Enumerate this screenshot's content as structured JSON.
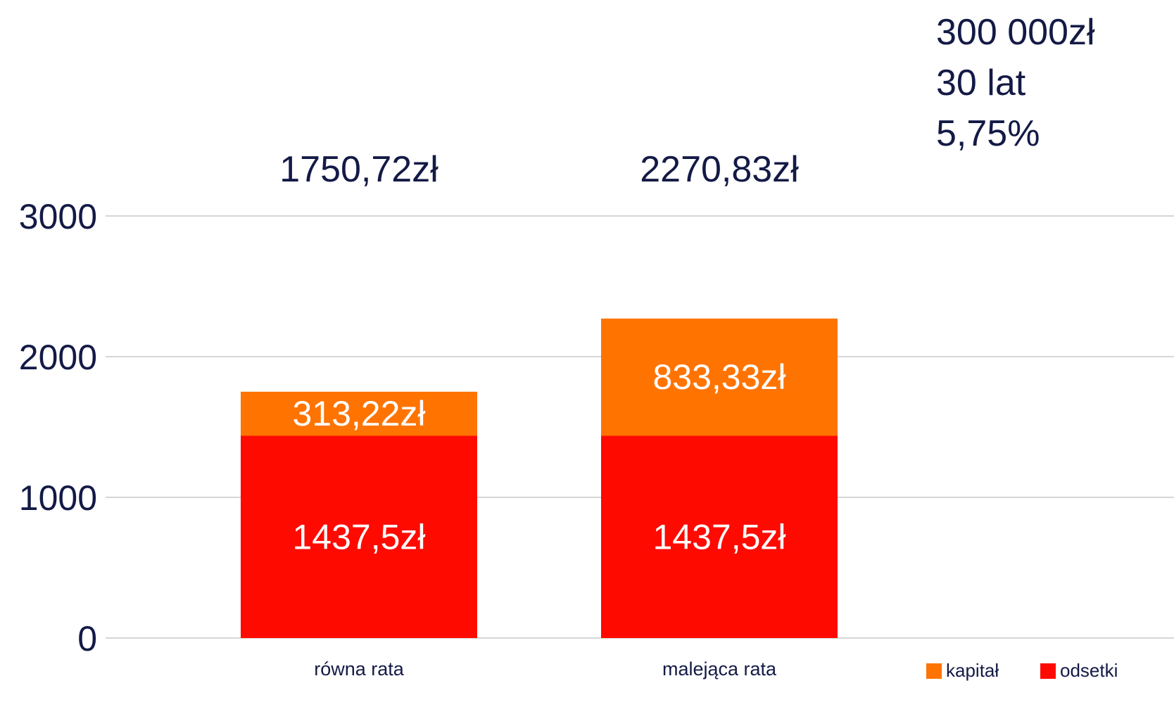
{
  "info_lines": [
    "300 000zł",
    "30 lat",
    "5,75%"
  ],
  "legend": [
    {
      "label": "kapitał",
      "color": "#ff7300"
    },
    {
      "label": "odsetki",
      "color": "#ff0a00"
    }
  ],
  "chart_data": {
    "type": "bar",
    "stacked": true,
    "categories": [
      "równa rata",
      "malejąca rata"
    ],
    "series": [
      {
        "name": "odsetki",
        "color": "#ff0a00",
        "values": [
          1437.5,
          1437.5
        ],
        "labels": [
          "1437,5zł",
          "1437,5zł"
        ]
      },
      {
        "name": "kapitał",
        "color": "#ff7300",
        "values": [
          313.22,
          833.33
        ],
        "labels": [
          "313,22zł",
          "833,33zł"
        ]
      }
    ],
    "totals": [
      "1750,72zł",
      "2270,83zł"
    ],
    "yticks": [
      "0",
      "1000",
      "2000",
      "3000"
    ],
    "ytick_values": [
      0,
      1000,
      2000,
      3000
    ],
    "ylim": [
      0,
      3000
    ],
    "grid": true,
    "legend_position": "bottom-right",
    "title": "",
    "xlabel": "",
    "ylabel": ""
  }
}
